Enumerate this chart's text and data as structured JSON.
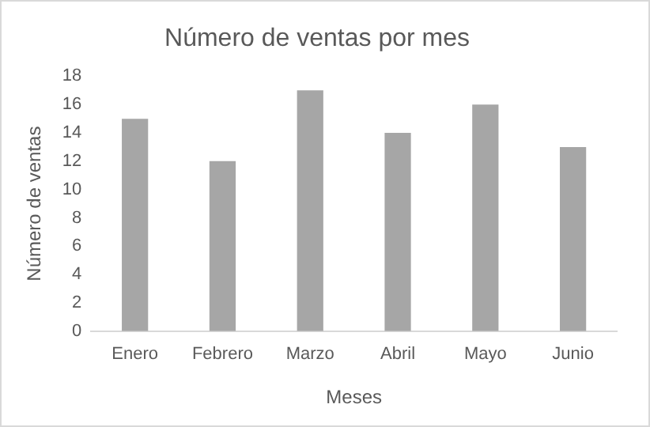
{
  "chart_data": {
    "type": "bar",
    "title": "Número de ventas por mes",
    "xlabel": "Meses",
    "ylabel": "Número de ventas",
    "categories": [
      "Enero",
      "Febrero",
      "Marzo",
      "Abril",
      "Mayo",
      "Junio"
    ],
    "values": [
      15,
      12,
      17,
      14,
      16,
      13
    ],
    "color": "#a6a6a6",
    "ylim": [
      0,
      18
    ],
    "yticks": [
      0,
      2,
      4,
      6,
      8,
      10,
      12,
      14,
      16,
      18
    ],
    "grid": false,
    "legend": false
  }
}
